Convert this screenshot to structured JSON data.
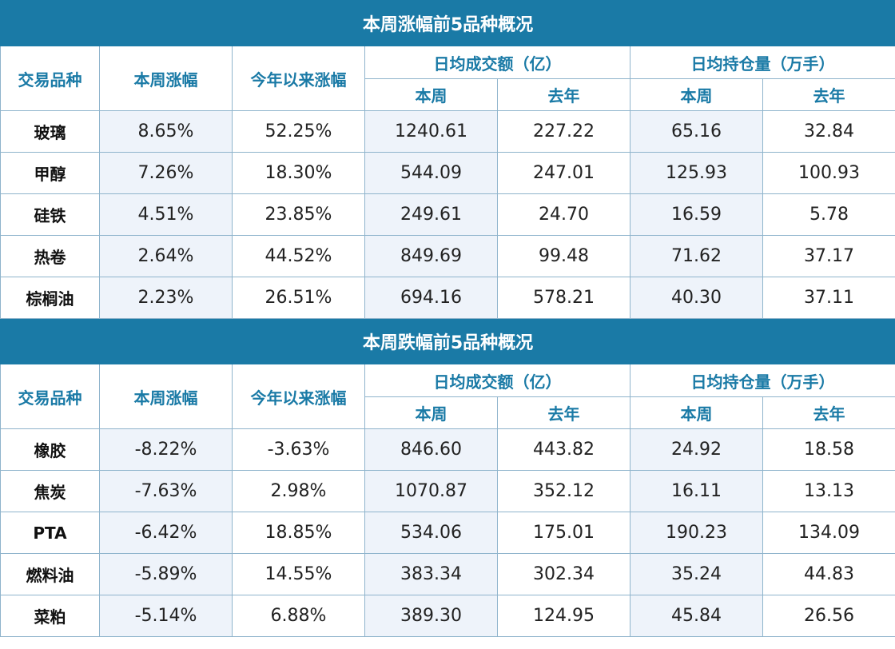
{
  "sections": [
    {
      "title": "本周涨幅前5品种概况",
      "headers": {
        "variety": "交易品种",
        "week_change": "本周涨幅",
        "ytd_change": "今年以来涨幅",
        "daily_volume": "日均成交额（亿）",
        "daily_oi": "日均持仓量（万手）",
        "this_week": "本周",
        "last_year": "去年"
      },
      "rows": [
        {
          "name": "玻璃",
          "week": "8.65%",
          "ytd": "52.25%",
          "vol_week": "1240.61",
          "vol_ly": "227.22",
          "oi_week": "65.16",
          "oi_ly": "32.84"
        },
        {
          "name": "甲醇",
          "week": "7.26%",
          "ytd": "18.30%",
          "vol_week": "544.09",
          "vol_ly": "247.01",
          "oi_week": "125.93",
          "oi_ly": "100.93"
        },
        {
          "name": "硅铁",
          "week": "4.51%",
          "ytd": "23.85%",
          "vol_week": "249.61",
          "vol_ly": "24.70",
          "oi_week": "16.59",
          "oi_ly": "5.78"
        },
        {
          "name": "热卷",
          "week": "2.64%",
          "ytd": "44.52%",
          "vol_week": "849.69",
          "vol_ly": "99.48",
          "oi_week": "71.62",
          "oi_ly": "37.17"
        },
        {
          "name": "棕榈油",
          "week": "2.23%",
          "ytd": "26.51%",
          "vol_week": "694.16",
          "vol_ly": "578.21",
          "oi_week": "40.30",
          "oi_ly": "37.11"
        }
      ]
    },
    {
      "title": "本周跌幅前5品种概况",
      "headers": {
        "variety": "交易品种",
        "week_change": "本周涨幅",
        "ytd_change": "今年以来涨幅",
        "daily_volume": "日均成交额（亿）",
        "daily_oi": "日均持仓量（万手）",
        "this_week": "本周",
        "last_year": "去年"
      },
      "rows": [
        {
          "name": "橡胶",
          "week": "-8.22%",
          "ytd": "-3.63%",
          "vol_week": "846.60",
          "vol_ly": "443.82",
          "oi_week": "24.92",
          "oi_ly": "18.58"
        },
        {
          "name": "焦炭",
          "week": "-7.63%",
          "ytd": "2.98%",
          "vol_week": "1070.87",
          "vol_ly": "352.12",
          "oi_week": "16.11",
          "oi_ly": "13.13"
        },
        {
          "name": "PTA",
          "week": "-6.42%",
          "ytd": "18.85%",
          "vol_week": "534.06",
          "vol_ly": "175.01",
          "oi_week": "190.23",
          "oi_ly": "134.09"
        },
        {
          "name": "燃料油",
          "week": "-5.89%",
          "ytd": "14.55%",
          "vol_week": "383.34",
          "vol_ly": "302.34",
          "oi_week": "35.24",
          "oi_ly": "44.83"
        },
        {
          "name": "菜粕",
          "week": "-5.14%",
          "ytd": "6.88%",
          "vol_week": "389.30",
          "vol_ly": "124.95",
          "oi_week": "45.84",
          "oi_ly": "26.56"
        }
      ]
    }
  ],
  "colors": {
    "header_bg": "#1a7aa6",
    "header_text": "#ffffff",
    "subheader_text": "#1a7aa6",
    "row_shade": "#eef3fa",
    "border": "#8fb4cc"
  }
}
